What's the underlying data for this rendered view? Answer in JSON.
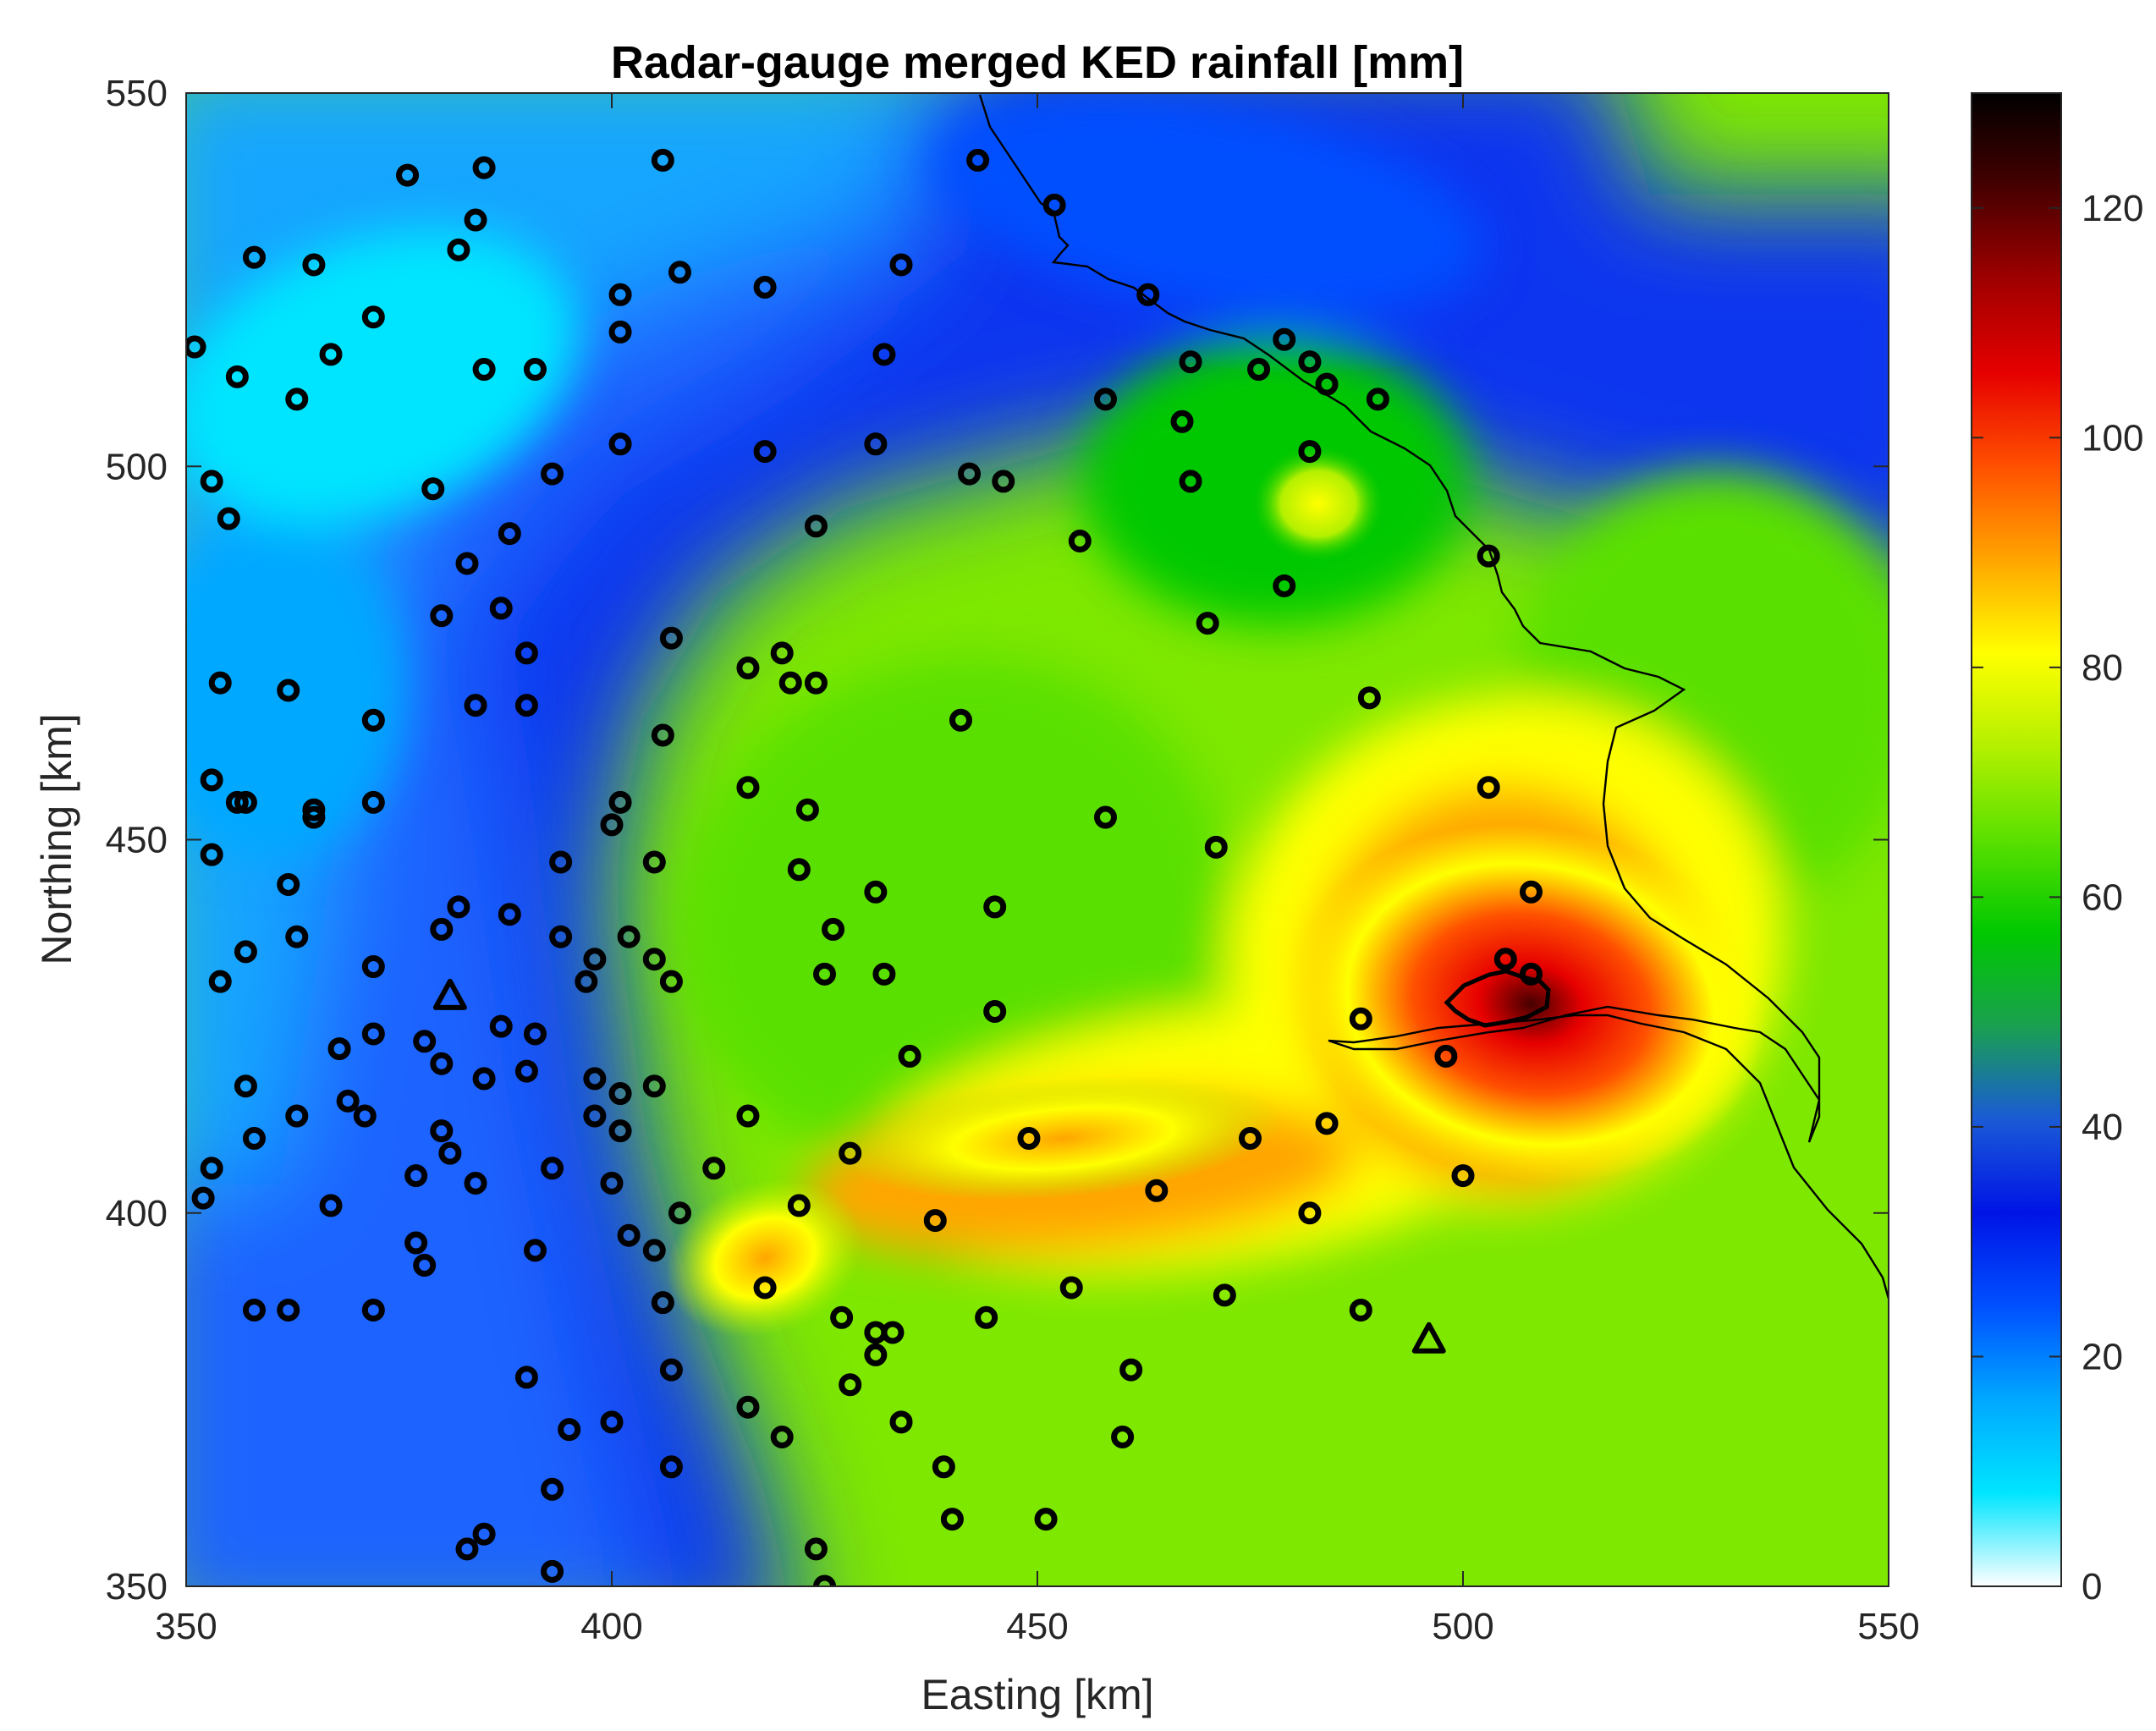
{
  "chart_data": {
    "type": "heatmap",
    "title": "Radar-gauge merged KED rainfall [mm]",
    "xlabel": "Easting [km]",
    "ylabel": "Northing [km]",
    "xlim": [
      350,
      550
    ],
    "ylim": [
      350,
      550
    ],
    "xticks": [
      "350",
      "400",
      "450",
      "500",
      "550"
    ],
    "yticks": [
      "350",
      "400",
      "450",
      "500",
      "550"
    ],
    "colorbar": {
      "lim": [
        0,
        130
      ],
      "ticks": [
        "0",
        "20",
        "40",
        "60",
        "80",
        "100",
        "120"
      ],
      "colormap": [
        "#ffffff",
        "#00e5ff",
        "#00a8ff",
        "#0050ff",
        "#0014e6",
        "#1a5ad6",
        "#1aa050",
        "#00c800",
        "#5ae000",
        "#b4f000",
        "#ffff00",
        "#ffa500",
        "#ff5000",
        "#e60000",
        "#a00000",
        "#460000",
        "#000000"
      ]
    },
    "rainfall_peaks": [
      {
        "easting": 508,
        "northing": 428,
        "rainfall_mm": 112
      },
      {
        "easting": 418,
        "northing": 394,
        "rainfall_mm": 90
      },
      {
        "easting": 483,
        "northing": 495,
        "rainfall_mm": 75
      },
      {
        "easting": 453,
        "northing": 410,
        "rainfall_mm": 80
      }
    ],
    "rain_gauges": [
      [
        351,
        516
      ],
      [
        353,
        498
      ],
      [
        355,
        493
      ],
      [
        358,
        528
      ],
      [
        356,
        512
      ],
      [
        365,
        527
      ],
      [
        363,
        509
      ],
      [
        367,
        515
      ],
      [
        372,
        520
      ],
      [
        376,
        539
      ],
      [
        382,
        529
      ],
      [
        384,
        533
      ],
      [
        385,
        540
      ],
      [
        385,
        513
      ],
      [
        391,
        513
      ],
      [
        379,
        497
      ],
      [
        388,
        491
      ],
      [
        383,
        487
      ],
      [
        380,
        480
      ],
      [
        387,
        481
      ],
      [
        393,
        499
      ],
      [
        401,
        523
      ],
      [
        401,
        518
      ],
      [
        401,
        503
      ],
      [
        408,
        526
      ],
      [
        406,
        541
      ],
      [
        418,
        524
      ],
      [
        354,
        471
      ],
      [
        353,
        458
      ],
      [
        356,
        455
      ],
      [
        357,
        455
      ],
      [
        362,
        470
      ],
      [
        365,
        454
      ],
      [
        365,
        453
      ],
      [
        372,
        466
      ],
      [
        372,
        455
      ],
      [
        384,
        468
      ],
      [
        390,
        468
      ],
      [
        390,
        475
      ],
      [
        353,
        448
      ],
      [
        357,
        435
      ],
      [
        362,
        444
      ],
      [
        363,
        437
      ],
      [
        354,
        431
      ],
      [
        372,
        433
      ],
      [
        380,
        438
      ],
      [
        382,
        441
      ],
      [
        388,
        440
      ],
      [
        394,
        447
      ],
      [
        394,
        437
      ],
      [
        397,
        431
      ],
      [
        398,
        434
      ],
      [
        400,
        452
      ],
      [
        401,
        455
      ],
      [
        402,
        437
      ],
      [
        405,
        447
      ],
      [
        406,
        464
      ],
      [
        407,
        477
      ],
      [
        405,
        434
      ],
      [
        407,
        431
      ],
      [
        357,
        417
      ],
      [
        358,
        410
      ],
      [
        363,
        413
      ],
      [
        367,
        401
      ],
      [
        368,
        422
      ],
      [
        369,
        415
      ],
      [
        371,
        413
      ],
      [
        372,
        424
      ],
      [
        377,
        405
      ],
      [
        378,
        423
      ],
      [
        380,
        420
      ],
      [
        380,
        411
      ],
      [
        381,
        408
      ],
      [
        384,
        404
      ],
      [
        385,
        418
      ],
      [
        387,
        425
      ],
      [
        390,
        419
      ],
      [
        391,
        424
      ],
      [
        393,
        406
      ],
      [
        398,
        413
      ],
      [
        398,
        418
      ],
      [
        401,
        411
      ],
      [
        401,
        416
      ],
      [
        400,
        404
      ],
      [
        405,
        417
      ],
      [
        353,
        406
      ],
      [
        352,
        402
      ],
      [
        358,
        387
      ],
      [
        362,
        387
      ],
      [
        372,
        387
      ],
      [
        377,
        396
      ],
      [
        378,
        393
      ],
      [
        383,
        355
      ],
      [
        385,
        357
      ],
      [
        390,
        378
      ],
      [
        391,
        395
      ],
      [
        393,
        352
      ],
      [
        393,
        363
      ],
      [
        395,
        371
      ],
      [
        400,
        372
      ],
      [
        402,
        397
      ],
      [
        405,
        395
      ],
      [
        406,
        388
      ],
      [
        407,
        366
      ],
      [
        408,
        400
      ],
      [
        407,
        379
      ],
      [
        412,
        406
      ],
      [
        416,
        413
      ],
      [
        416,
        457
      ],
      [
        416,
        473
      ],
      [
        420,
        475
      ],
      [
        421,
        471
      ],
      [
        424,
        471
      ],
      [
        423,
        454
      ],
      [
        422,
        446
      ],
      [
        425,
        432
      ],
      [
        424,
        492
      ],
      [
        418,
        502
      ],
      [
        426,
        438
      ],
      [
        431,
        443
      ],
      [
        432,
        432
      ],
      [
        428,
        408
      ],
      [
        422,
        401
      ],
      [
        418,
        390
      ],
      [
        420,
        370
      ],
      [
        416,
        374
      ],
      [
        424,
        355
      ],
      [
        425,
        350
      ],
      [
        427,
        386
      ],
      [
        428,
        377
      ],
      [
        431,
        384
      ],
      [
        431,
        381
      ],
      [
        433,
        384
      ],
      [
        434,
        372
      ],
      [
        435,
        421
      ],
      [
        431,
        503
      ],
      [
        432,
        515
      ],
      [
        434,
        527
      ],
      [
        438,
        399
      ],
      [
        439,
        366
      ],
      [
        440,
        359
      ],
      [
        441,
        466
      ],
      [
        442,
        499
      ],
      [
        444,
        386
      ],
      [
        445,
        441
      ],
      [
        445,
        427
      ],
      [
        446,
        498
      ],
      [
        443,
        541
      ],
      [
        449,
        410
      ],
      [
        451,
        359
      ],
      [
        452,
        535
      ],
      [
        454,
        390
      ],
      [
        455,
        490
      ],
      [
        458,
        453
      ],
      [
        458,
        509
      ],
      [
        460,
        370
      ],
      [
        461,
        379
      ],
      [
        463,
        523
      ],
      [
        464,
        403
      ],
      [
        467,
        506
      ],
      [
        468,
        498
      ],
      [
        468,
        514
      ],
      [
        470,
        479
      ],
      [
        471,
        449
      ],
      [
        472,
        389
      ],
      [
        475,
        410
      ],
      [
        476,
        513
      ],
      [
        479,
        517
      ],
      [
        479,
        484
      ],
      [
        482,
        502
      ],
      [
        482,
        400
      ],
      [
        482,
        514
      ],
      [
        484,
        511
      ],
      [
        484,
        412
      ],
      [
        488,
        426
      ],
      [
        488,
        387
      ],
      [
        489,
        469
      ],
      [
        490,
        509
      ],
      [
        498,
        421
      ],
      [
        500,
        405
      ],
      [
        503,
        488
      ],
      [
        503,
        457
      ],
      [
        505,
        434
      ],
      [
        508,
        443
      ],
      [
        508,
        432
      ]
    ],
    "triangle_markers": [
      [
        381,
        429
      ],
      [
        496,
        383
      ]
    ]
  }
}
